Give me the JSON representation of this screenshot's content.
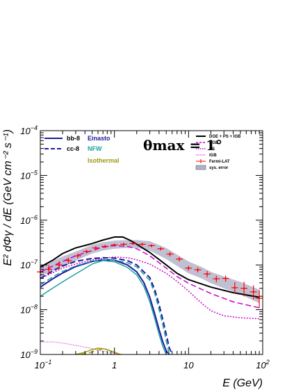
{
  "chart_data": {
    "type": "line",
    "xscale": "log",
    "yscale": "log",
    "xlim": [
      0.1,
      100
    ],
    "ylim": [
      1e-09,
      0.0001
    ],
    "xlabel": "E (GeV)",
    "ylabel": "E² dΦγ / dE (GeV cm⁻² s⁻¹)",
    "x_ticks": [
      "10⁻¹",
      "1",
      "10",
      "10²"
    ],
    "y_ticks": [
      "10⁻⁹",
      "10⁻⁸",
      "10⁻⁷",
      "10⁻⁶",
      "10⁻⁵",
      "10⁻⁴"
    ],
    "annotation": "θmax = 1°",
    "legend_dm": {
      "channels": [
        {
          "label": "bb-8",
          "style": "solid"
        },
        {
          "label": "cc-8",
          "style": "dashed"
        }
      ],
      "profiles": [
        {
          "label": "Einasto",
          "color": "#1a1a9a"
        },
        {
          "label": "NFW",
          "color": "#1aa0a0"
        },
        {
          "label": "Isothermal",
          "color": "#9a9a10"
        }
      ]
    },
    "legend_bg": [
      {
        "label": "DGE + PS + IGB",
        "color": "#000000",
        "style": "solid"
      },
      {
        "label": "DGE",
        "color": "#cc00cc",
        "style": "dashed"
      },
      {
        "label": "PS",
        "color": "#cc00cc",
        "style": "dotted"
      },
      {
        "label": "IGB",
        "color": "#cc00cc",
        "style": "dotted-fine"
      },
      {
        "label": "Fermi-LAT",
        "color": "#ff0000",
        "style": "errorbar"
      },
      {
        "label": "sys. error",
        "color": "#b0b0c8",
        "style": "box"
      }
    ],
    "series": [
      {
        "name": "DGE + PS + IGB",
        "color": "#000000",
        "dash": "solid",
        "width": 2,
        "x": [
          0.1,
          0.15,
          0.2,
          0.3,
          0.5,
          0.7,
          1,
          1.3,
          1.6,
          2,
          3,
          5,
          7,
          10,
          20,
          40,
          90
        ],
        "y": [
          9e-08,
          1.3e-07,
          1.8e-07,
          2.4e-07,
          3e-07,
          3.6e-07,
          4.2e-07,
          4.2e-07,
          3.6e-07,
          2.9e-07,
          1.9e-07,
          1e-07,
          6.5e-08,
          4.7e-08,
          3.2e-08,
          2.4e-08,
          1.9e-08
        ]
      },
      {
        "name": "DGE",
        "color": "#cc00cc",
        "dash": "dashed",
        "width": 1.5,
        "x": [
          0.1,
          0.2,
          0.3,
          0.5,
          0.7,
          1,
          1.5,
          2,
          3,
          5,
          7,
          10,
          20,
          40,
          90
        ],
        "y": [
          7e-08,
          1.2e-07,
          1.6e-07,
          2.1e-07,
          2.5e-07,
          2.7e-07,
          2.6e-07,
          2.3e-07,
          1.6e-07,
          8.5e-08,
          5.5e-08,
          3.9e-08,
          2.3e-08,
          1.5e-08,
          1.1e-08
        ]
      },
      {
        "name": "PS",
        "color": "#cc00cc",
        "dash": "dotted",
        "width": 1.5,
        "x": [
          0.1,
          0.2,
          0.3,
          0.5,
          0.7,
          1,
          1.5,
          2,
          3,
          5,
          7,
          10,
          15,
          20,
          30,
          50,
          90
        ],
        "y": [
          5e-08,
          8.5e-08,
          1.05e-07,
          1.3e-07,
          1.4e-07,
          1.5e-07,
          1.45e-07,
          1.3e-07,
          1.05e-07,
          6.5e-08,
          4.3e-08,
          2.6e-08,
          1.4e-08,
          9.5e-09,
          7.3e-09,
          6.6e-09,
          6.3e-09
        ]
      },
      {
        "name": "IGB",
        "color": "#cc00cc",
        "dash": "dotted-fine",
        "width": 1,
        "x": [
          0.1,
          0.15,
          0.2,
          0.3,
          0.5,
          0.7,
          1,
          1.3
        ],
        "y": [
          1.9e-09,
          1.9e-09,
          1.8e-09,
          1.6e-09,
          1.35e-09,
          1.18e-09,
          1.06e-09,
          1e-09
        ]
      },
      {
        "name": "bb-8 Einasto",
        "color": "#1a1a9a",
        "dash": "solid",
        "width": 2,
        "x": [
          0.1,
          0.15,
          0.2,
          0.3,
          0.5,
          0.7,
          1,
          1.5,
          2,
          2.5,
          3,
          3.5,
          4,
          4.5,
          5,
          5.5
        ],
        "y": [
          3.2e-08,
          5e-08,
          6.6e-08,
          9.2e-08,
          1.2e-07,
          1.3e-07,
          1.28e-07,
          1e-07,
          7e-08,
          4e-08,
          1.9e-08,
          8e-09,
          3.6e-09,
          1.9e-09,
          1.2e-09,
          1e-09
        ]
      },
      {
        "name": "cc-8 Einasto",
        "color": "#1a1a9a",
        "dash": "dashed",
        "width": 2,
        "x": [
          0.1,
          0.15,
          0.2,
          0.3,
          0.5,
          0.7,
          1,
          1.5,
          2,
          3,
          3.5,
          4,
          4.5,
          5,
          5.5,
          6
        ],
        "y": [
          5e-08,
          7.5e-08,
          9.5e-08,
          1.2e-07,
          1.4e-07,
          1.45e-07,
          1.42e-07,
          1.25e-07,
          1e-07,
          5.2e-08,
          2.8e-08,
          1.3e-08,
          6e-09,
          2.8e-09,
          1.4e-09,
          1e-09
        ]
      },
      {
        "name": "bb-8 NFW",
        "color": "#1aa0a0",
        "dash": "solid",
        "width": 1.5,
        "x": [
          0.1,
          0.15,
          0.2,
          0.3,
          0.5,
          0.7,
          1,
          1.5,
          2,
          2.5,
          3,
          3.5,
          4,
          4.5,
          5
        ],
        "y": [
          2e-08,
          3.1e-08,
          4.2e-08,
          6.3e-08,
          1.05e-07,
          1.25e-07,
          1.18e-07,
          8.8e-08,
          6e-08,
          3.3e-08,
          1.5e-08,
          6.3e-09,
          2.8e-09,
          1.5e-09,
          1e-09
        ]
      },
      {
        "name": "cc-8 NFW",
        "color": "#1aa0a0",
        "dash": "dashed",
        "width": 1.5,
        "x": [
          0.1,
          0.15,
          0.2,
          0.3,
          0.5,
          0.7,
          1,
          1.5,
          2,
          3,
          3.5,
          4,
          4.5,
          5,
          5.5
        ],
        "y": [
          3.6e-08,
          5.5e-08,
          7.2e-08,
          9.5e-08,
          1.22e-07,
          1.3e-07,
          1.28e-07,
          1.12e-07,
          9e-08,
          4.5e-08,
          2.3e-08,
          1e-08,
          4.5e-09,
          2e-09,
          1e-09
        ]
      },
      {
        "name": "bb-8 Isothermal",
        "color": "#9a9a10",
        "dash": "solid",
        "width": 1.5,
        "x": [
          0.3,
          0.4,
          0.5,
          0.6,
          0.7,
          0.8,
          1.0,
          1.2
        ],
        "y": [
          1e-09,
          1.12e-09,
          1.28e-09,
          1.38e-09,
          1.35e-09,
          1.28e-09,
          1.12e-09,
          1e-09
        ]
      },
      {
        "name": "cc-8 Isothermal",
        "color": "#9a9a10",
        "dash": "dashed",
        "width": 1.5,
        "x": [
          0.35,
          0.45,
          0.55,
          0.65,
          0.75,
          0.9,
          1.05,
          1.25
        ],
        "y": [
          1e-09,
          1.08e-09,
          1.2e-09,
          1.3e-09,
          1.32e-09,
          1.2e-09,
          1.08e-09,
          1e-09
        ]
      }
    ],
    "fermi_lat": {
      "name": "Fermi-LAT",
      "color": "#ff0000",
      "x": [
        0.1,
        0.13,
        0.18,
        0.24,
        0.32,
        0.42,
        0.56,
        0.75,
        1.0,
        1.33,
        1.78,
        2.37,
        3.16,
        4.2,
        5.6,
        7.5,
        10,
        13.3,
        17.8,
        23.7,
        31.6,
        42,
        56,
        75,
        90
      ],
      "y": [
        7e-08,
        8e-08,
        1e-07,
        1.25e-07,
        1.6e-07,
        2e-07,
        2.4e-07,
        2.6e-07,
        2.8e-07,
        2.9e-07,
        3e-07,
        2.9e-07,
        2.7e-07,
        2.3e-07,
        1.75e-07,
        1.35e-07,
        8.5e-08,
        7.8e-08,
        6.3e-08,
        4.9e-08,
        5e-08,
        3.1e-08,
        3e-08,
        2.5e-08,
        1.8e-08
      ],
      "yerr_lo": [
        2e-08,
        2e-08,
        2e-08,
        2e-08,
        2e-08,
        2e-08,
        2e-08,
        2e-08,
        2e-08,
        2e-08,
        2e-08,
        2e-08,
        2e-08,
        2e-08,
        2e-08,
        1.5e-08,
        1e-08,
        1e-08,
        1e-08,
        8e-09,
        8e-09,
        8e-09,
        1e-08,
        8e-09,
        7e-09
      ],
      "yerr_hi": [
        2e-08,
        2e-08,
        2e-08,
        2e-08,
        2e-08,
        2e-08,
        2e-08,
        2e-08,
        2e-08,
        2e-08,
        2e-08,
        2e-08,
        2e-08,
        2e-08,
        2e-08,
        1.5e-08,
        1e-08,
        1e-08,
        1e-08,
        8e-09,
        8e-09,
        1e-08,
        1.2e-08,
        1e-08,
        9e-09
      ]
    },
    "sys_band": {
      "name": "sys. error",
      "color": "#b0b0c8",
      "x": [
        0.1,
        0.15,
        0.2,
        0.3,
        0.5,
        0.7,
        1,
        1.5,
        2,
        3,
        5,
        7,
        10,
        15,
        20,
        30,
        50,
        90
      ],
      "y_lo": [
        5.5e-08,
        7.5e-08,
        9e-08,
        1.25e-07,
        1.8e-07,
        2.1e-07,
        2.3e-07,
        2.4e-07,
        2.4e-07,
        2.1e-07,
        1.35e-07,
        9.5e-08,
        6.5e-08,
        5e-08,
        3.9e-08,
        3e-08,
        2.2e-08,
        1.4e-08
      ],
      "y_hi": [
        9.5e-08,
        1.25e-07,
        1.55e-07,
        2e-07,
        2.8e-07,
        3.2e-07,
        3.5e-07,
        3.6e-07,
        3.6e-07,
        3.4e-07,
        2.4e-07,
        1.7e-07,
        1.2e-07,
        9e-08,
        7e-08,
        5.5e-08,
        4.2e-08,
        2.8e-08
      ]
    }
  }
}
